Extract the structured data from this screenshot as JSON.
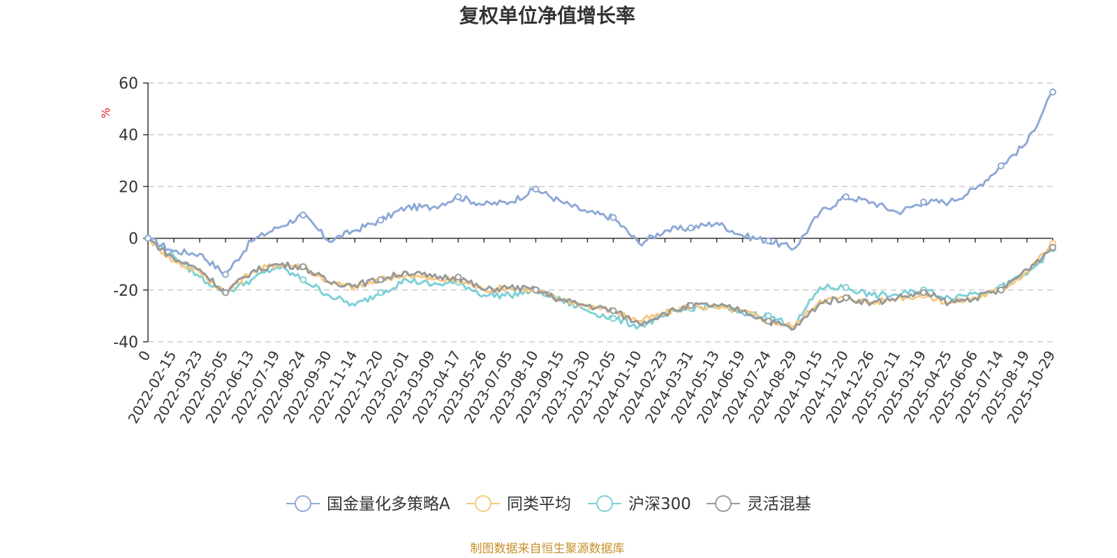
{
  "chart_data": {
    "type": "line",
    "title": "复权单位净值增长率",
    "ylabel": "%",
    "ylim": [
      -40,
      60
    ],
    "yticks": [
      "60",
      "40",
      "20",
      "0",
      "-20",
      "-40"
    ],
    "categories": [
      "0",
      "2022-02-15",
      "2022-03-23",
      "2022-05-05",
      "2022-06-13",
      "2022-07-19",
      "2022-08-24",
      "2022-09-30",
      "2022-11-14",
      "2022-12-20",
      "2023-02-01",
      "2023-03-09",
      "2023-04-17",
      "2023-05-26",
      "2023-07-05",
      "2023-08-10",
      "2023-09-15",
      "2023-10-30",
      "2023-12-05",
      "2024-01-10",
      "2024-02-23",
      "2024-03-31",
      "2024-05-13",
      "2024-06-19",
      "2024-07-24",
      "2024-08-29",
      "2024-10-15",
      "2024-11-20",
      "2024-12-26",
      "2025-02-11",
      "2025-03-19",
      "2025-04-25",
      "2025-06-06",
      "2025-07-14",
      "2025-08-19",
      "2025-10-29"
    ],
    "grid": true,
    "legend_position": "bottom",
    "series": [
      {
        "name": "国金量化多策略A",
        "color": "#8fa9d6",
        "values": [
          0,
          -5,
          -6,
          -14,
          -1,
          4,
          9,
          -1,
          3,
          7,
          12,
          12,
          16,
          13,
          14,
          19,
          14,
          10,
          8,
          -2,
          3,
          4,
          6,
          1,
          -1,
          -4,
          10,
          16,
          14,
          10,
          14,
          14,
          19,
          28,
          37,
          56.5
        ]
      },
      {
        "name": "同类平均",
        "color": "#f7c97e",
        "values": [
          0,
          -9,
          -13,
          -21,
          -13,
          -10,
          -11,
          -17,
          -19,
          -16,
          -14,
          -16,
          -16,
          -20,
          -19,
          -20,
          -24,
          -26,
          -28,
          -32,
          -29,
          -26,
          -27,
          -28,
          -32,
          -34,
          -24,
          -23,
          -25,
          -23,
          -22,
          -25,
          -23,
          -20,
          -13,
          -2
        ]
      },
      {
        "name": "沪深300",
        "color": "#7dd0d6",
        "values": [
          0,
          -7,
          -15,
          -21,
          -16,
          -11,
          -16,
          -22,
          -26,
          -21,
          -16,
          -18,
          -17,
          -22,
          -22,
          -20,
          -24,
          -28,
          -31,
          -34,
          -30,
          -27,
          -26,
          -29,
          -30,
          -34,
          -19,
          -19,
          -22,
          -22,
          -20,
          -23,
          -21,
          -19,
          -14,
          -4
        ]
      },
      {
        "name": "灵活混基",
        "color": "#999999",
        "values": [
          0,
          -8,
          -12,
          -21,
          -13,
          -10,
          -11,
          -17,
          -18,
          -16,
          -13,
          -15,
          -15,
          -20,
          -19,
          -20,
          -24,
          -26,
          -28,
          -33,
          -29,
          -26,
          -26,
          -28,
          -32,
          -35,
          -25,
          -23,
          -25,
          -23,
          -21,
          -25,
          -23,
          -20,
          -12,
          -3.5
        ]
      }
    ]
  },
  "source_note": "制图数据来自恒生聚源数据库"
}
